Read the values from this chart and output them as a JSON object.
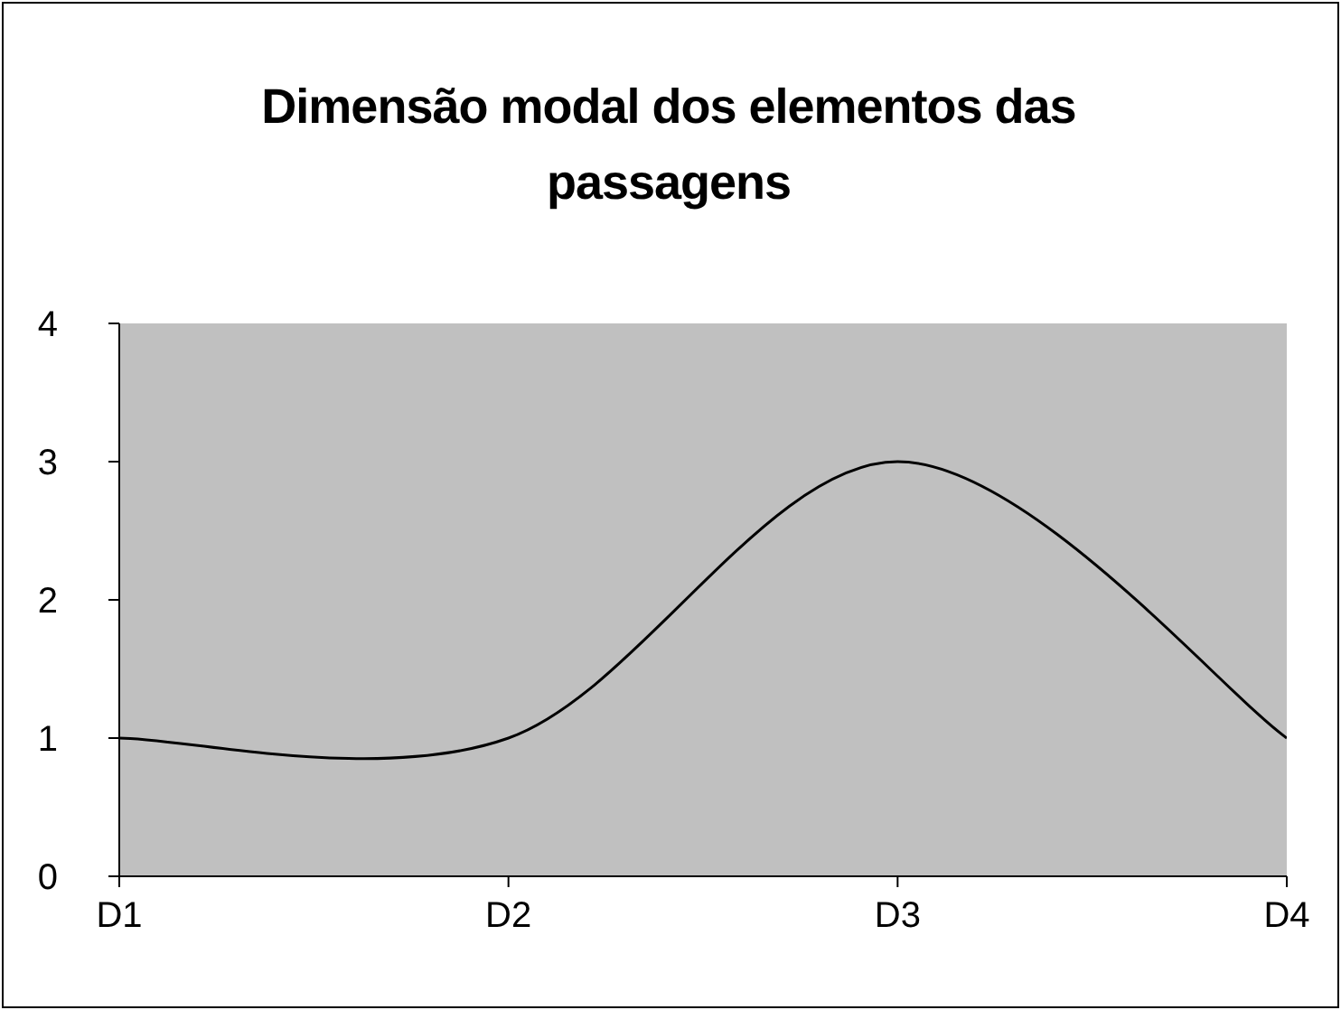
{
  "chart_data": {
    "type": "line",
    "title": "Dimensão modal dos elementos das passagens",
    "categories": [
      "D1",
      "D2",
      "D3",
      "D4"
    ],
    "series": [
      {
        "color": "#000000",
        "values": [
          1,
          1,
          3,
          1
        ]
      }
    ],
    "ylim": [
      0,
      4
    ],
    "yticks": [
      0,
      1,
      2,
      3,
      4
    ],
    "grid": false,
    "marker": "none",
    "line_style": "solid"
  }
}
